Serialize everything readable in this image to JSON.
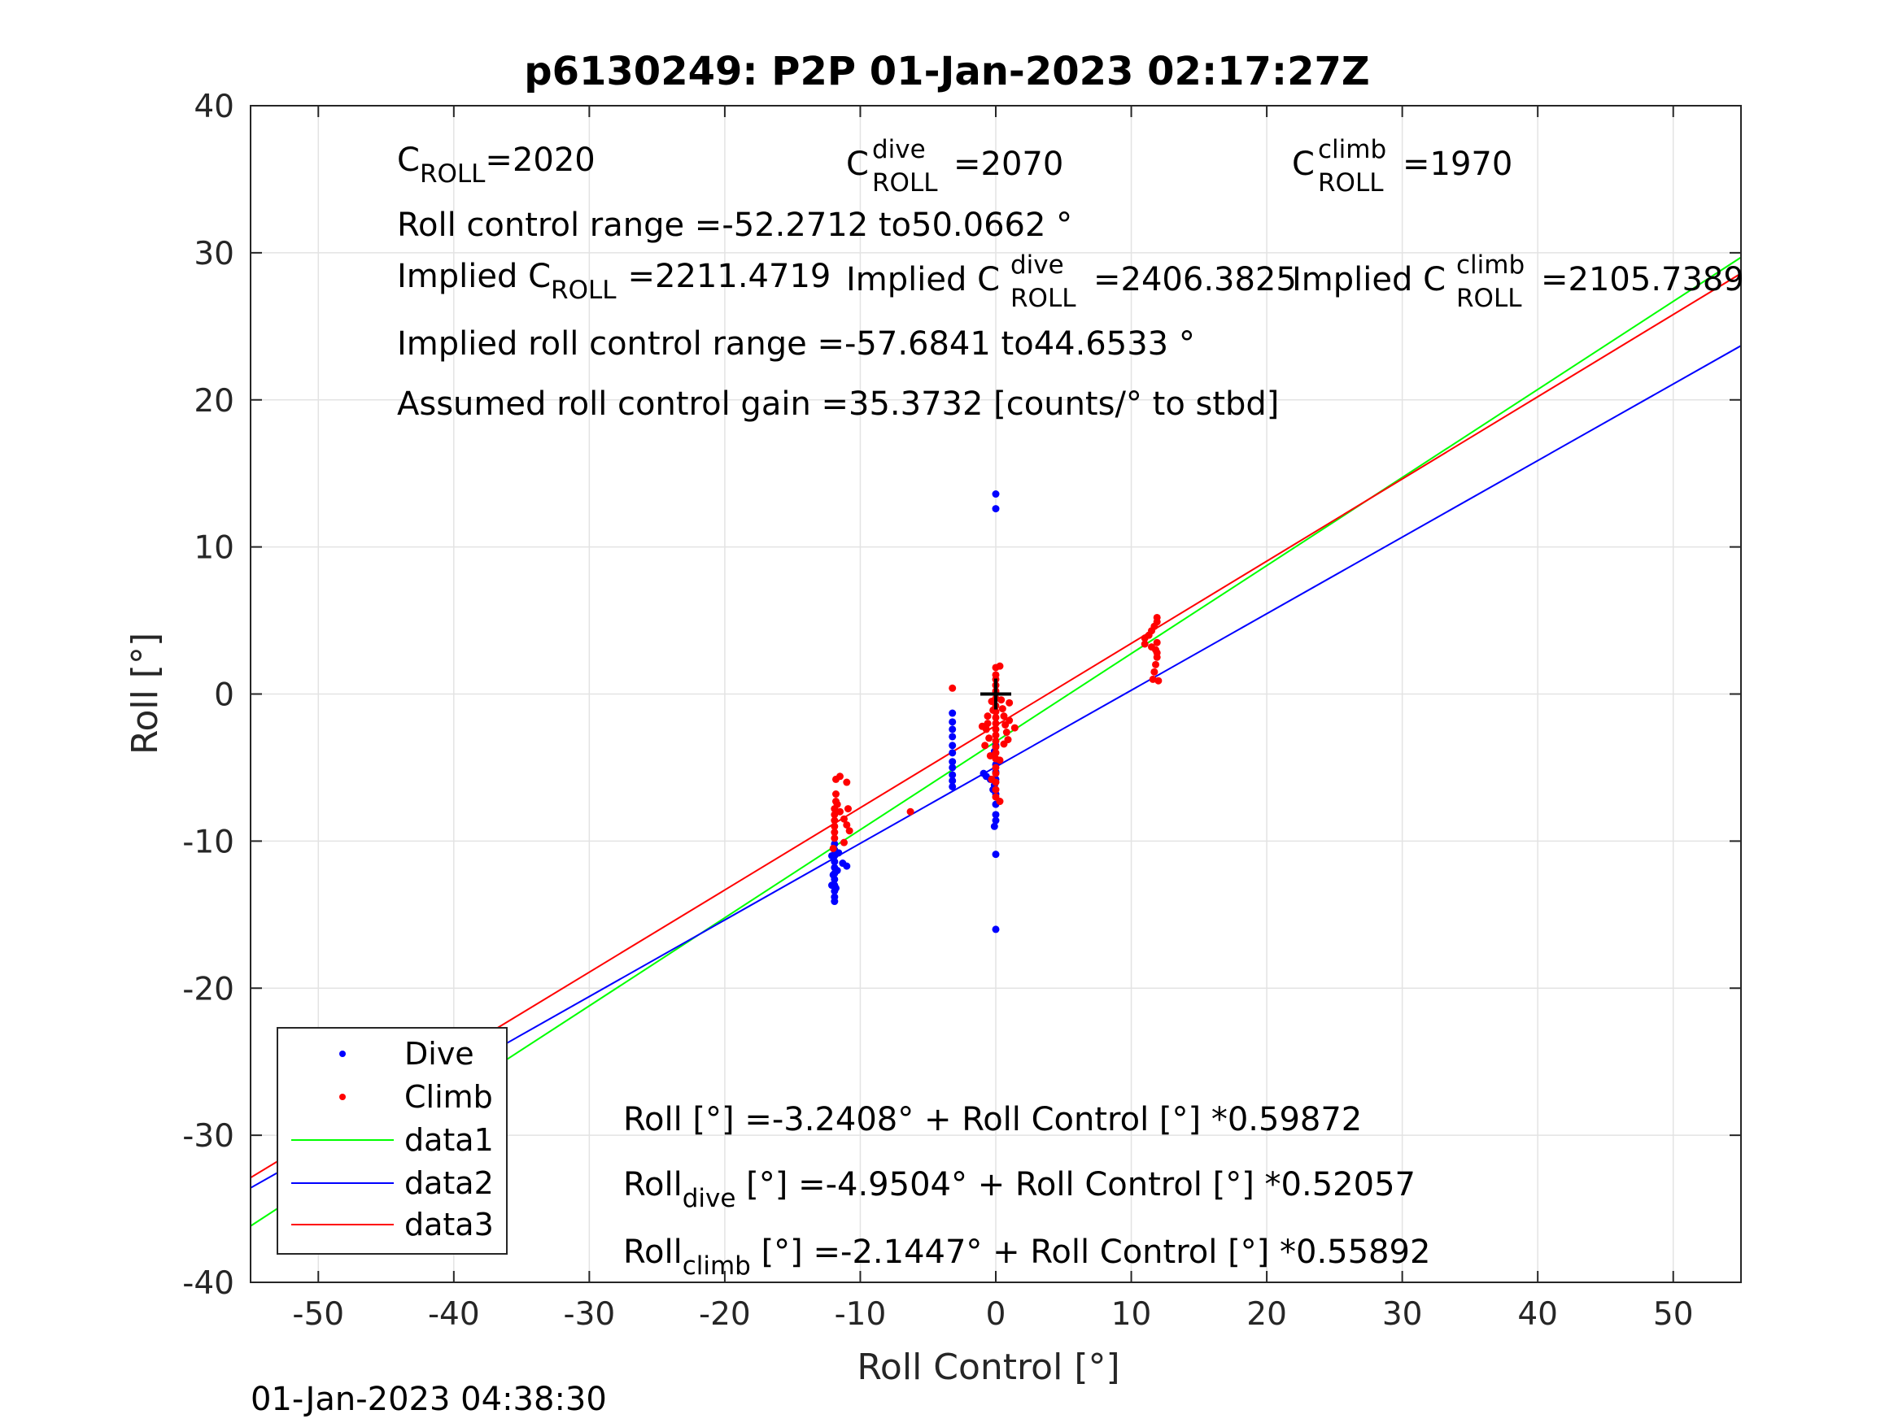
{
  "chart_data": {
    "type": "scatter",
    "title": "p6130249: P2P 01-Jan-2023 02:17:27Z",
    "xlabel": "Roll Control [°]",
    "ylabel": "Roll [°]",
    "xlim": [
      -55,
      55
    ],
    "ylim": [
      -40,
      40
    ],
    "xticks": [
      -50,
      -40,
      -30,
      -20,
      -10,
      0,
      10,
      20,
      30,
      40,
      50
    ],
    "yticks": [
      -40,
      -30,
      -20,
      -10,
      0,
      10,
      20,
      30,
      40
    ],
    "grid": true,
    "legend_position": "bottom-left",
    "colors": {
      "dive": "#0000ff",
      "climb": "#ff0000",
      "data1": "#00ff00",
      "data2": "#0000ff",
      "data3": "#ff0000",
      "marker": "#000000"
    },
    "legend": [
      "Dive",
      "Climb",
      "data1",
      "data2",
      "data3"
    ],
    "center_marker": {
      "x": 0,
      "y": 0
    },
    "lines": [
      {
        "name": "data1",
        "intercept": -3.2408,
        "slope": 0.59872
      },
      {
        "name": "data2",
        "intercept": -4.9504,
        "slope": 0.52057
      },
      {
        "name": "data3",
        "intercept": -2.1447,
        "slope": 0.55892
      }
    ],
    "series": [
      {
        "name": "Dive",
        "points": [
          [
            -11.9,
            -10.2
          ],
          [
            -11.9,
            -10.6
          ],
          [
            -11.9,
            -11.0
          ],
          [
            -11.9,
            -11.4
          ],
          [
            -11.9,
            -11.8
          ],
          [
            -11.9,
            -12.2
          ],
          [
            -11.9,
            -12.6
          ],
          [
            -11.9,
            -13.0
          ],
          [
            -11.9,
            -13.4
          ],
          [
            -11.9,
            -13.8
          ],
          [
            -11.9,
            -14.1
          ],
          [
            -12.1,
            -11.0
          ],
          [
            -11.7,
            -12.0
          ],
          [
            -12.1,
            -13.0
          ],
          [
            -11.6,
            -10.8
          ],
          [
            -11.3,
            -11.5
          ],
          [
            -11.0,
            -11.7
          ],
          [
            -12.0,
            -12.3
          ],
          [
            -11.8,
            -13.2
          ],
          [
            -3.2,
            -1.3
          ],
          [
            -3.2,
            -1.9
          ],
          [
            -3.2,
            -2.4
          ],
          [
            -3.2,
            -2.9
          ],
          [
            -3.2,
            -3.5
          ],
          [
            -3.2,
            -4.0
          ],
          [
            -3.2,
            -4.6
          ],
          [
            -3.2,
            -5.0
          ],
          [
            -3.2,
            -5.5
          ],
          [
            -3.2,
            -5.9
          ],
          [
            -3.2,
            -6.3
          ],
          [
            0,
            13.6
          ],
          [
            0,
            12.6
          ],
          [
            0,
            -16.0
          ],
          [
            0,
            -10.9
          ],
          [
            -0.1,
            -9.0
          ],
          [
            0,
            -8.6
          ],
          [
            0,
            -8.2
          ],
          [
            0,
            -7.5
          ],
          [
            0,
            -6.8
          ],
          [
            -0.1,
            -6.2
          ],
          [
            0,
            -5.8
          ],
          [
            0,
            -5.3
          ],
          [
            0,
            -4.8
          ],
          [
            -0.4,
            -5.8
          ],
          [
            -0.7,
            -5.6
          ],
          [
            -0.9,
            -5.4
          ],
          [
            -0.2,
            -6.5
          ],
          [
            0.1,
            -4.5
          ],
          [
            -0.1,
            -3.9
          ],
          [
            0,
            -3.5
          ]
        ]
      },
      {
        "name": "Climb",
        "points": [
          [
            -11.8,
            -5.8
          ],
          [
            -11.5,
            -5.6
          ],
          [
            -11.0,
            -6.0
          ],
          [
            -11.8,
            -6.8
          ],
          [
            -11.8,
            -7.3
          ],
          [
            -11.9,
            -7.8
          ],
          [
            -11.9,
            -8.2
          ],
          [
            -11.9,
            -8.6
          ],
          [
            -11.9,
            -9.0
          ],
          [
            -11.9,
            -9.4
          ],
          [
            -11.9,
            -9.8
          ],
          [
            -11.5,
            -8.0
          ],
          [
            -11.2,
            -8.5
          ],
          [
            -11.0,
            -8.9
          ],
          [
            -10.8,
            -9.3
          ],
          [
            -11.2,
            -10.1
          ],
          [
            -12.0,
            -10.5
          ],
          [
            -11.7,
            -7.5
          ],
          [
            -10.9,
            -7.8
          ],
          [
            -6.3,
            -8.0
          ],
          [
            -3.2,
            0.4
          ],
          [
            11.0,
            3.4
          ],
          [
            11.0,
            3.8
          ],
          [
            11.3,
            4.0
          ],
          [
            11.5,
            4.3
          ],
          [
            11.7,
            4.6
          ],
          [
            11.9,
            4.9
          ],
          [
            11.9,
            5.2
          ],
          [
            11.9,
            3.5
          ],
          [
            11.8,
            3.0
          ],
          [
            11.9,
            2.5
          ],
          [
            11.8,
            2.0
          ],
          [
            11.7,
            1.5
          ],
          [
            11.6,
            1.0
          ],
          [
            12.0,
            0.9
          ],
          [
            11.9,
            2.8
          ],
          [
            11.5,
            3.2
          ],
          [
            0,
            1.8
          ],
          [
            0.3,
            1.9
          ],
          [
            0,
            1.3
          ],
          [
            0,
            1.0
          ],
          [
            0,
            0.6
          ],
          [
            0,
            0.2
          ],
          [
            0,
            -0.3
          ],
          [
            0,
            -0.8
          ],
          [
            0,
            -1.2
          ],
          [
            0,
            -1.6
          ],
          [
            0,
            -2.0
          ],
          [
            0,
            -2.4
          ],
          [
            0,
            -2.8
          ],
          [
            0,
            -3.2
          ],
          [
            0,
            -3.6
          ],
          [
            0,
            -4.0
          ],
          [
            0,
            -4.4
          ],
          [
            0,
            -5.0
          ],
          [
            0,
            -5.4
          ],
          [
            0,
            -6.0
          ],
          [
            0,
            -6.5
          ],
          [
            0,
            -7.0
          ],
          [
            0.3,
            -7.3
          ],
          [
            -0.6,
            -1.5
          ],
          [
            -0.6,
            -2.0
          ],
          [
            -0.7,
            -2.4
          ],
          [
            -0.5,
            -3.0
          ],
          [
            -0.8,
            -3.5
          ],
          [
            -0.4,
            -4.2
          ],
          [
            -0.3,
            -0.5
          ],
          [
            0.4,
            -0.4
          ],
          [
            0.5,
            -1.0
          ],
          [
            0.6,
            -1.5
          ],
          [
            0.7,
            -2.1
          ],
          [
            0.8,
            -2.6
          ],
          [
            0.9,
            -3.1
          ],
          [
            1.0,
            -0.6
          ],
          [
            1.0,
            -1.8
          ],
          [
            0.6,
            -3.4
          ],
          [
            0.3,
            -4.5
          ],
          [
            -0.3,
            -5.8
          ],
          [
            1.4,
            -2.3
          ],
          [
            -1.0,
            -2.2
          ],
          [
            -0.2,
            -1.1
          ]
        ]
      }
    ]
  },
  "annotations": {
    "c_roll_base": "C",
    "c_roll_sub": "ROLL",
    "c_roll_val": "=2020",
    "c_dive_base": "C",
    "c_dive_sup": "dive",
    "c_dive_sub": "ROLL",
    "c_dive_val": "=2070",
    "c_climb_base": "C",
    "c_climb_sup": "climb",
    "c_climb_sub": "ROLL",
    "c_climb_val": "=1970",
    "roll_range": "Roll control range =-52.2712 to50.0662 °",
    "implied_c_roll_pre": "Implied C",
    "implied_c_roll_sub": "ROLL",
    "implied_c_roll_val": "=2211.4719",
    "implied_c_dive_pre": "Implied C",
    "implied_c_dive_sup": "dive",
    "implied_c_dive_sub": "ROLL",
    "implied_c_dive_val": "=2406.3825",
    "implied_c_climb_pre": "Implied C",
    "implied_c_climb_sup": "climb",
    "implied_c_climb_sub": "ROLL",
    "implied_c_climb_val": "=2105.7389",
    "implied_range": "Implied roll control range =-57.6841 to44.6533 °",
    "assumed_gain": "Assumed roll control gain =35.3732 [counts/° to stbd]",
    "fit_all": "Roll [°] =-3.2408° + Roll Control [°] *0.59872",
    "fit_dive_base": "Roll",
    "fit_dive_sub": "dive",
    "fit_dive_rest": " [°] =-4.9504° + Roll Control [°] *0.52057",
    "fit_climb_base": "Roll",
    "fit_climb_sub": "climb",
    "fit_climb_rest": " [°] =-2.1447° + Roll Control [°] *0.55892"
  },
  "footer": {
    "timestamp": "01-Jan-2023 04:38:30"
  }
}
